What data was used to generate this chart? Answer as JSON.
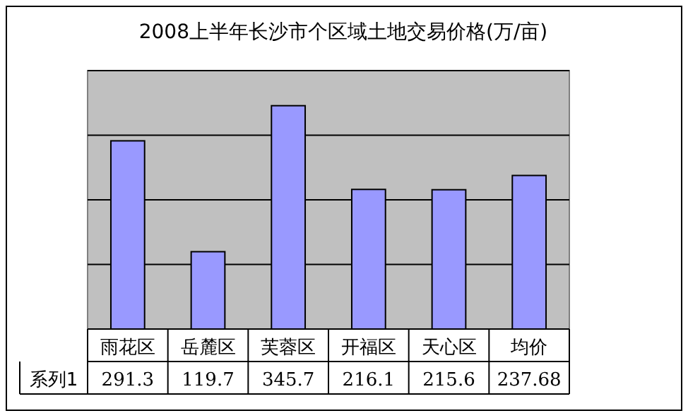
{
  "chart_data": {
    "type": "bar",
    "title": "2008上半年长沙市个区域土地交易价格(万/亩)",
    "categories": [
      "雨花区",
      "岳麓区",
      "芙蓉区",
      "开福区",
      "天心区",
      "均价"
    ],
    "series": [
      {
        "name": "系列1",
        "color": "#9999ff",
        "values": [
          291.3,
          119.7,
          345.7,
          216.1,
          215.6,
          237.68
        ]
      }
    ],
    "ylim": [
      0,
      400
    ],
    "yticks": [
      {
        "value": 0,
        "label": null
      },
      {
        "value": 100,
        "label": null
      },
      {
        "value": 200,
        "label": null
      },
      {
        "value": 300,
        "label": null
      },
      {
        "value": 400,
        "label": null
      }
    ],
    "grid": "y",
    "tick_labels": "x",
    "data_labels": true
  }
}
